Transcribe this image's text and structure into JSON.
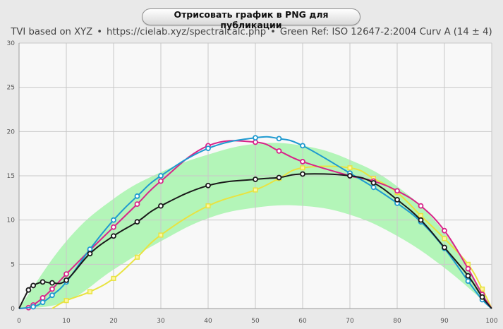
{
  "toolbar": {
    "render_button_label": "Отрисовать график в PNG для публикации"
  },
  "subtitle": {
    "part1": "TVI based on XYZ",
    "part2": "https://cielab.xyz/spectralcalc.php",
    "part3": "Green Ref: ISO 12647-2:2004 Curv A (14 ± 4)",
    "separator": "•"
  },
  "chart_data": {
    "type": "line",
    "xlim": [
      0,
      100
    ],
    "ylim": [
      0,
      30
    ],
    "x_ticks": [
      0,
      10,
      20,
      30,
      40,
      50,
      60,
      70,
      80,
      90,
      100
    ],
    "y_ticks": [
      0,
      5,
      10,
      15,
      20,
      25,
      30
    ],
    "grid": true,
    "reference_band": {
      "color": "#b3f5b8",
      "x": [
        0,
        10,
        20,
        30,
        40,
        50,
        60,
        70,
        80,
        90,
        100
      ],
      "upper": [
        0,
        7.6,
        12.4,
        15.4,
        17.4,
        18.6,
        18.4,
        16.8,
        13.8,
        8.6,
        0
      ],
      "lower": [
        0,
        0.8,
        4.4,
        7.6,
        10.2,
        11.4,
        11.6,
        10.6,
        8.2,
        4.6,
        0
      ]
    },
    "series": [
      {
        "color": "#e8e341",
        "marker": "square",
        "x": [
          7,
          10,
          15,
          20,
          25,
          30,
          40,
          50,
          55,
          60,
          70,
          75,
          80,
          85,
          90,
          95,
          98,
          100
        ],
        "y": [
          0,
          0.9,
          1.9,
          3.4,
          5.8,
          8.3,
          11.6,
          13.4,
          14.7,
          15.9,
          15.9,
          14.7,
          13.1,
          10.5,
          7.9,
          5.0,
          2.2,
          0
        ]
      },
      {
        "color": "#d8248a",
        "marker": "circle",
        "x": [
          0,
          2,
          3,
          5,
          7,
          10,
          15,
          20,
          25,
          30,
          40,
          50,
          55,
          60,
          70,
          75,
          80,
          85,
          90,
          95,
          98,
          100
        ],
        "y": [
          0,
          0.1,
          0.4,
          1.2,
          2.2,
          3.9,
          6.6,
          9.2,
          11.8,
          14.4,
          18.4,
          18.8,
          17.8,
          16.6,
          15.0,
          14.4,
          13.3,
          11.6,
          8.8,
          4.5,
          1.6,
          0
        ]
      },
      {
        "color": "#1e9ad0",
        "marker": "circle",
        "x": [
          0,
          3,
          5,
          7,
          10,
          15,
          20,
          25,
          30,
          40,
          50,
          55,
          60,
          70,
          75,
          80,
          85,
          90,
          95,
          98,
          100
        ],
        "y": [
          0,
          0.2,
          0.7,
          1.5,
          3.0,
          6.7,
          10.0,
          12.7,
          15.0,
          18.1,
          19.3,
          19.2,
          18.4,
          15.3,
          13.7,
          11.9,
          9.8,
          6.8,
          3.1,
          1.0,
          0
        ]
      },
      {
        "color": "#1a1a1a",
        "marker": "circle",
        "x": [
          0,
          2,
          3,
          5,
          7,
          10,
          15,
          20,
          25,
          30,
          40,
          50,
          55,
          60,
          70,
          75,
          80,
          85,
          90,
          95,
          98,
          100
        ],
        "y": [
          0,
          2.1,
          2.6,
          3.0,
          2.9,
          3.2,
          6.2,
          8.2,
          9.8,
          11.6,
          13.9,
          14.6,
          14.8,
          15.2,
          15.0,
          14.2,
          12.3,
          10.0,
          6.9,
          3.7,
          1.3,
          0
        ]
      }
    ]
  }
}
